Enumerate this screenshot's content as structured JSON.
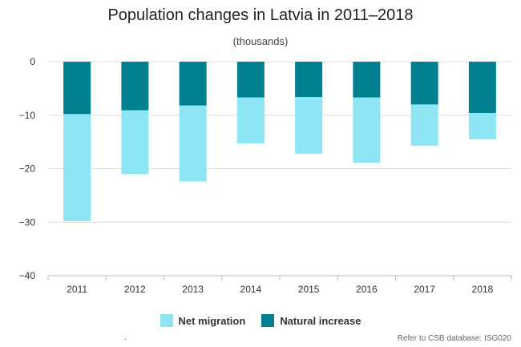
{
  "chart_data": {
    "type": "bar",
    "stacked": true,
    "title": "Population changes in Latvia in 2011–2018",
    "subtitle": "(thousands)",
    "xlabel": "",
    "ylabel": "",
    "categories": [
      "2011",
      "2012",
      "2013",
      "2014",
      "2015",
      "2016",
      "2017",
      "2018"
    ],
    "series": [
      {
        "name": "Natural increase",
        "color": "#00808f",
        "values": [
          -9.8,
          -9.1,
          -8.2,
          -6.7,
          -6.6,
          -6.7,
          -8.0,
          -9.6
        ]
      },
      {
        "name": "Net migration",
        "color": "#8ee6f5",
        "values": [
          -20.0,
          -11.9,
          -14.2,
          -8.6,
          -10.6,
          -12.2,
          -7.7,
          -4.9
        ]
      }
    ],
    "ylim": [
      -40,
      0
    ],
    "yticks": [
      0,
      -10,
      -20,
      -30,
      -40
    ],
    "ytick_labels": [
      "0",
      "−10",
      "−20",
      "−30",
      "−40"
    ],
    "grid": true,
    "legend_position": "bottom"
  },
  "legend": [
    "Net migration",
    "Natural increase"
  ],
  "footer": {
    "dot": ".",
    "source": "Refer to CSB database: ISG020"
  }
}
